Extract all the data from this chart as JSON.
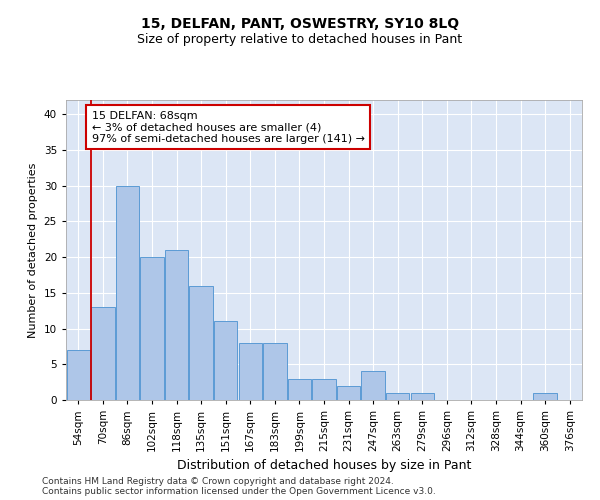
{
  "title": "15, DELFAN, PANT, OSWESTRY, SY10 8LQ",
  "subtitle": "Size of property relative to detached houses in Pant",
  "xlabel": "Distribution of detached houses by size in Pant",
  "ylabel": "Number of detached properties",
  "footer_line1": "Contains HM Land Registry data © Crown copyright and database right 2024.",
  "footer_line2": "Contains public sector information licensed under the Open Government Licence v3.0.",
  "categories": [
    "54sqm",
    "70sqm",
    "86sqm",
    "102sqm",
    "118sqm",
    "135sqm",
    "151sqm",
    "167sqm",
    "183sqm",
    "199sqm",
    "215sqm",
    "231sqm",
    "247sqm",
    "263sqm",
    "279sqm",
    "296sqm",
    "312sqm",
    "328sqm",
    "344sqm",
    "360sqm",
    "376sqm"
  ],
  "values": [
    7,
    13,
    30,
    20,
    21,
    16,
    11,
    8,
    8,
    3,
    3,
    2,
    4,
    1,
    1,
    0,
    0,
    0,
    0,
    1,
    0
  ],
  "bar_color": "#aec6e8",
  "bar_edge_color": "#5b9bd5",
  "annotation_text": "15 DELFAN: 68sqm\n← 3% of detached houses are smaller (4)\n97% of semi-detached houses are larger (141) →",
  "annotation_box_color": "#ffffff",
  "annotation_box_edge_color": "#cc0000",
  "property_line_color": "#cc0000",
  "ylim": [
    0,
    42
  ],
  "yticks": [
    0,
    5,
    10,
    15,
    20,
    25,
    30,
    35,
    40
  ],
  "background_color": "#dce6f5",
  "grid_color": "#ffffff",
  "title_fontsize": 10,
  "subtitle_fontsize": 9,
  "xlabel_fontsize": 9,
  "ylabel_fontsize": 8,
  "tick_fontsize": 7.5,
  "footer_fontsize": 6.5,
  "annotation_fontsize": 8
}
